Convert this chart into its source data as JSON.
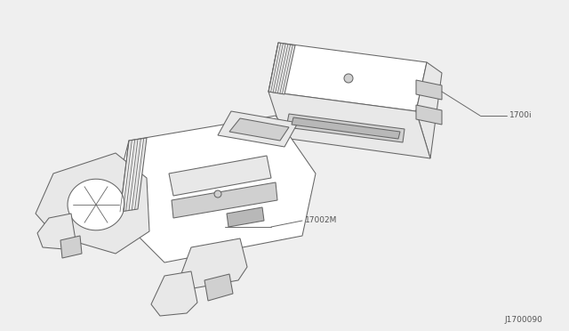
{
  "bg_color": "#efefef",
  "line_color": "#666666",
  "fill_white": "#ffffff",
  "fill_light": "#e8e8e8",
  "fill_mid": "#d0d0d0",
  "fill_dark": "#b8b8b8",
  "label1": "1700i",
  "label2": "17002M",
  "diagram_id": "J1700090",
  "text_color": "#555555",
  "lw": 0.75
}
